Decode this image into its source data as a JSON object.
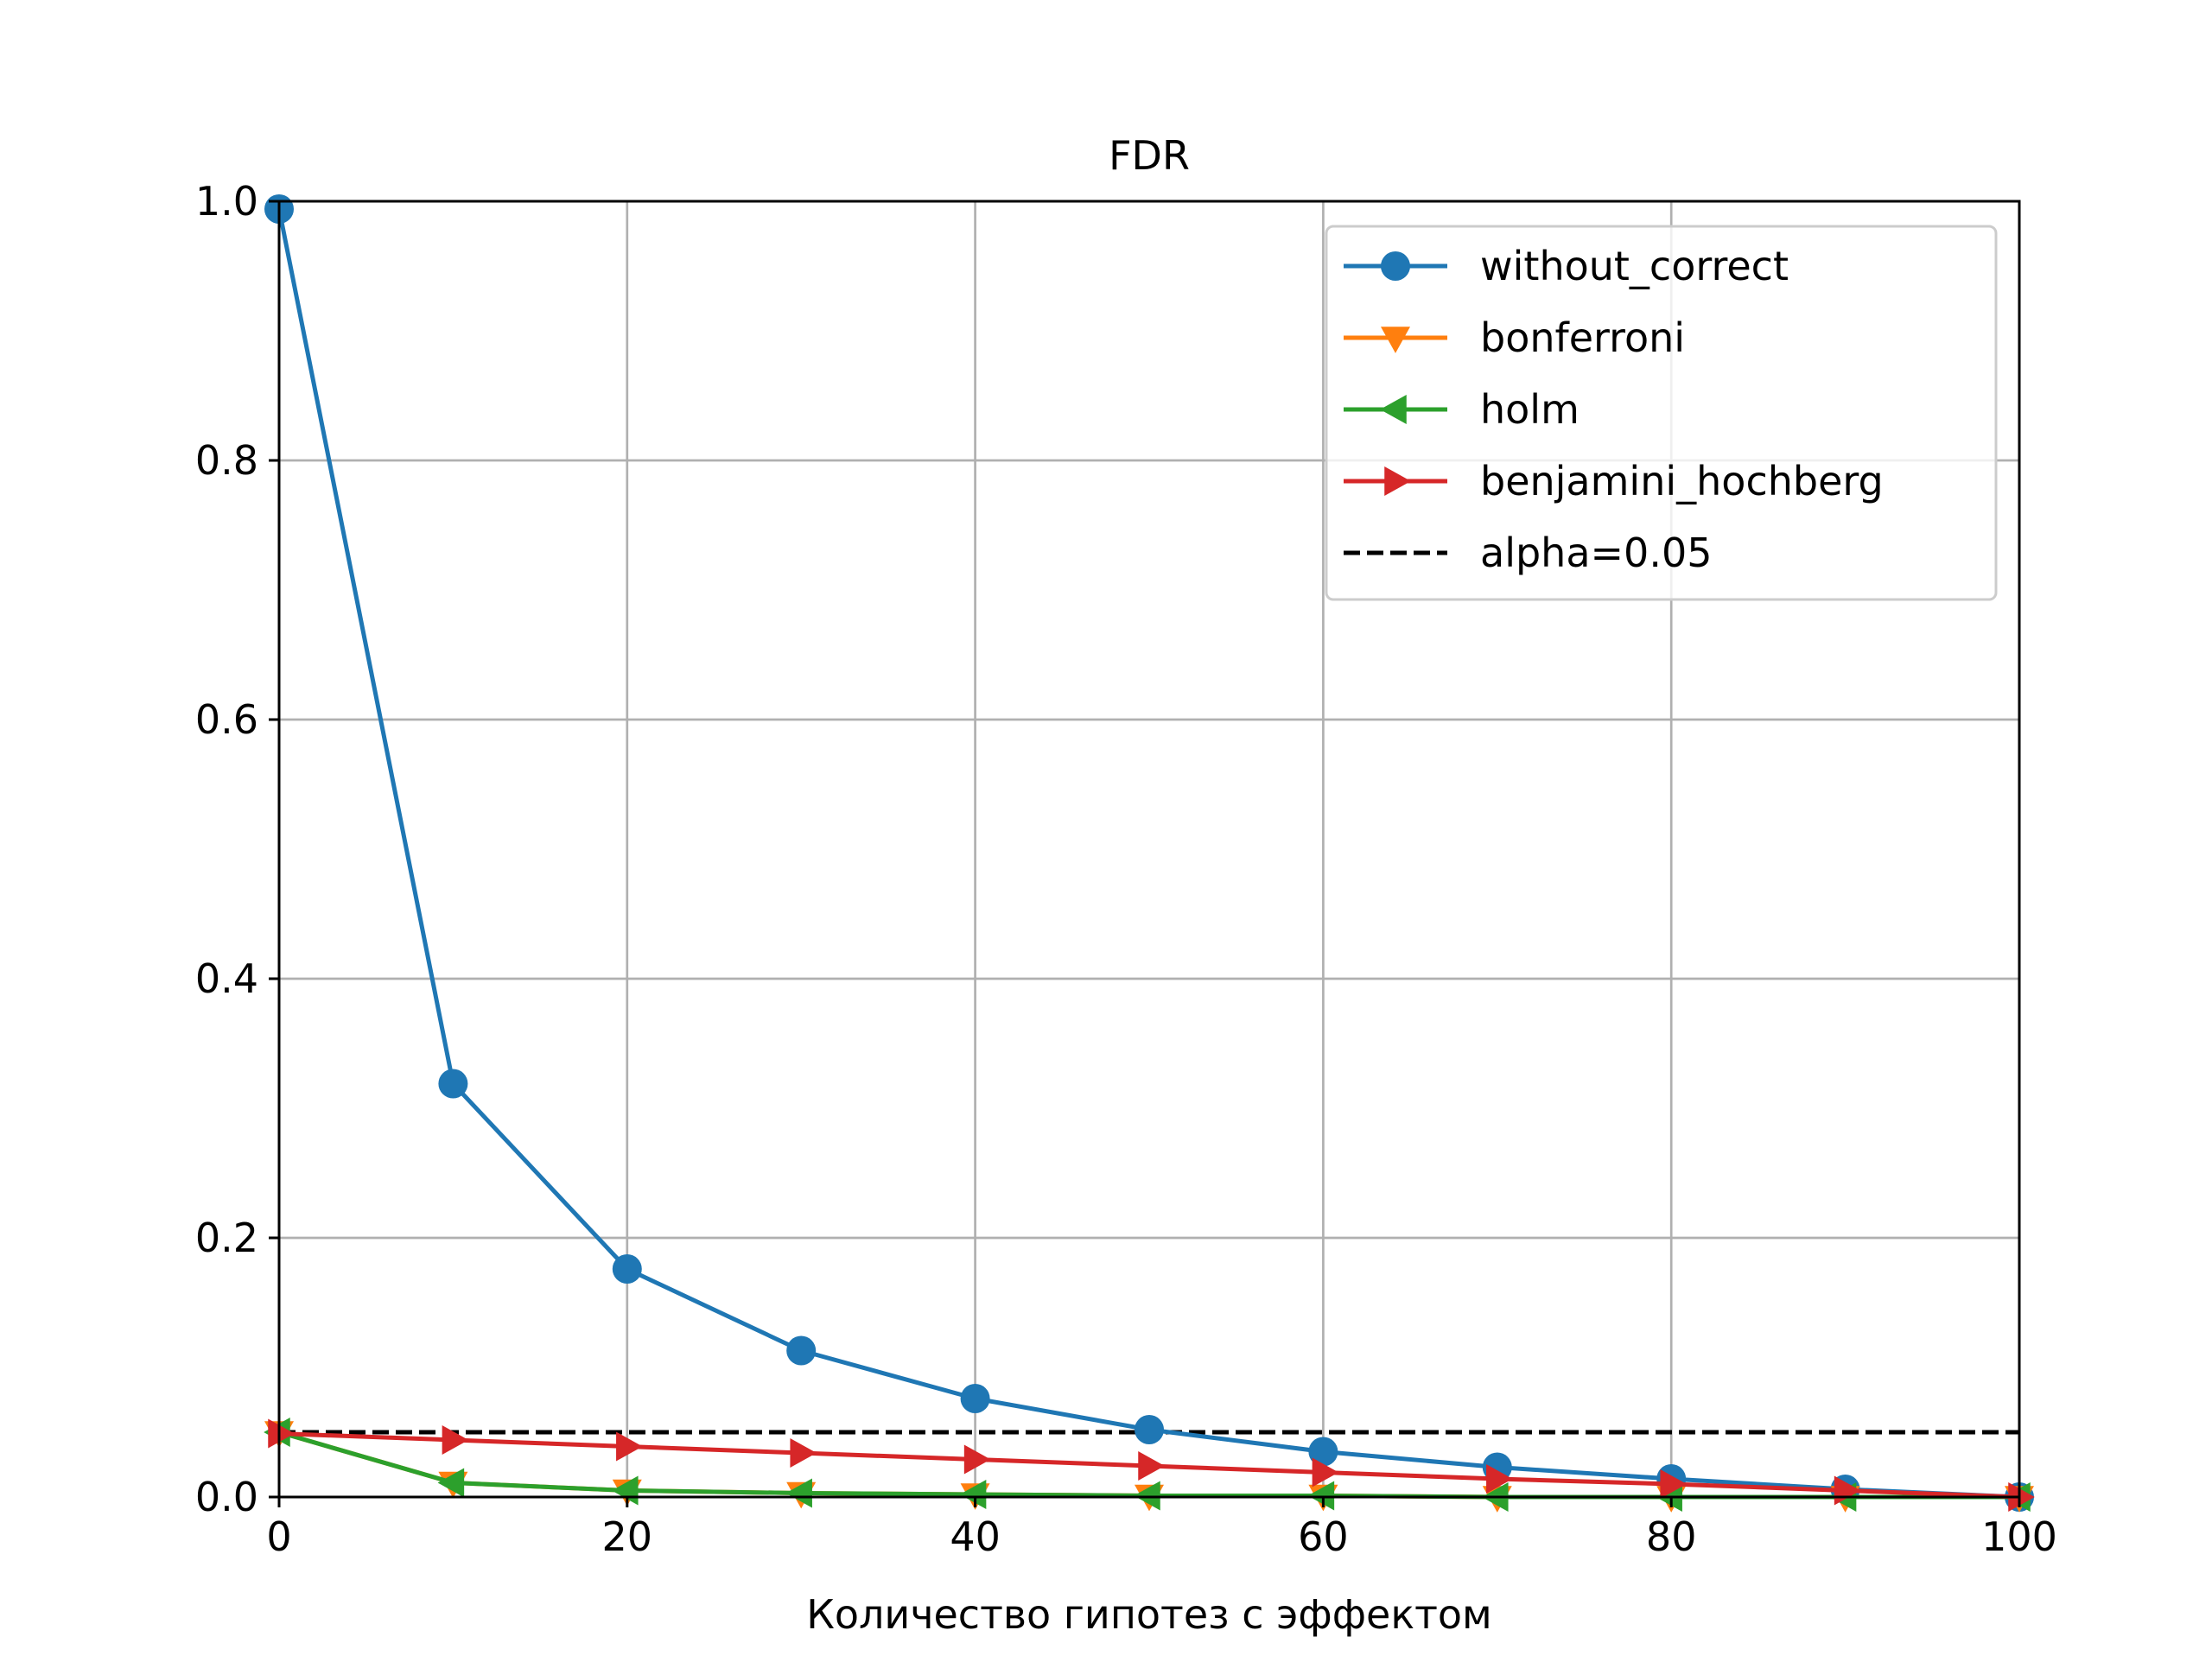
{
  "chart_data": {
    "type": "line",
    "title": "FDR",
    "xlabel": "Количество гипотез с эффектом",
    "ylabel": "",
    "xlim": [
      0,
      100
    ],
    "ylim": [
      0,
      1.0
    ],
    "x_ticks": [
      "0",
      "20",
      "40",
      "60",
      "80",
      "100"
    ],
    "y_ticks": [
      "0.0",
      "0.2",
      "0.4",
      "0.6",
      "0.8",
      "1.0"
    ],
    "grid": true,
    "legend_position": "top-right",
    "x": [
      0,
      10,
      20,
      30,
      40,
      50,
      60,
      70,
      80,
      90,
      100
    ],
    "series": [
      {
        "name": "without_correct",
        "color": "#1f77b4",
        "marker": "circle",
        "values": [
          0.994,
          0.319,
          0.176,
          0.113,
          0.076,
          0.052,
          0.035,
          0.023,
          0.014,
          0.006,
          0.0
        ]
      },
      {
        "name": "bonferroni",
        "color": "#ff7f0e",
        "marker": "triangle-down",
        "values": [
          0.05,
          0.011,
          0.005,
          0.003,
          0.002,
          0.001,
          0.001,
          0.0,
          0.0,
          0.0,
          0.0
        ]
      },
      {
        "name": "holm",
        "color": "#2ca02c",
        "marker": "triangle-left",
        "values": [
          0.05,
          0.011,
          0.005,
          0.003,
          0.002,
          0.001,
          0.001,
          0.0,
          0.0,
          0.0,
          0.0
        ]
      },
      {
        "name": "benjamini_hochberg",
        "color": "#d62728",
        "marker": "triangle-right",
        "values": [
          0.049,
          0.044,
          0.039,
          0.034,
          0.029,
          0.024,
          0.019,
          0.014,
          0.01,
          0.005,
          0.0
        ]
      }
    ],
    "reference_line": {
      "name": "alpha=0.05",
      "value": 0.05,
      "color": "#000000",
      "style": "dashed"
    }
  }
}
